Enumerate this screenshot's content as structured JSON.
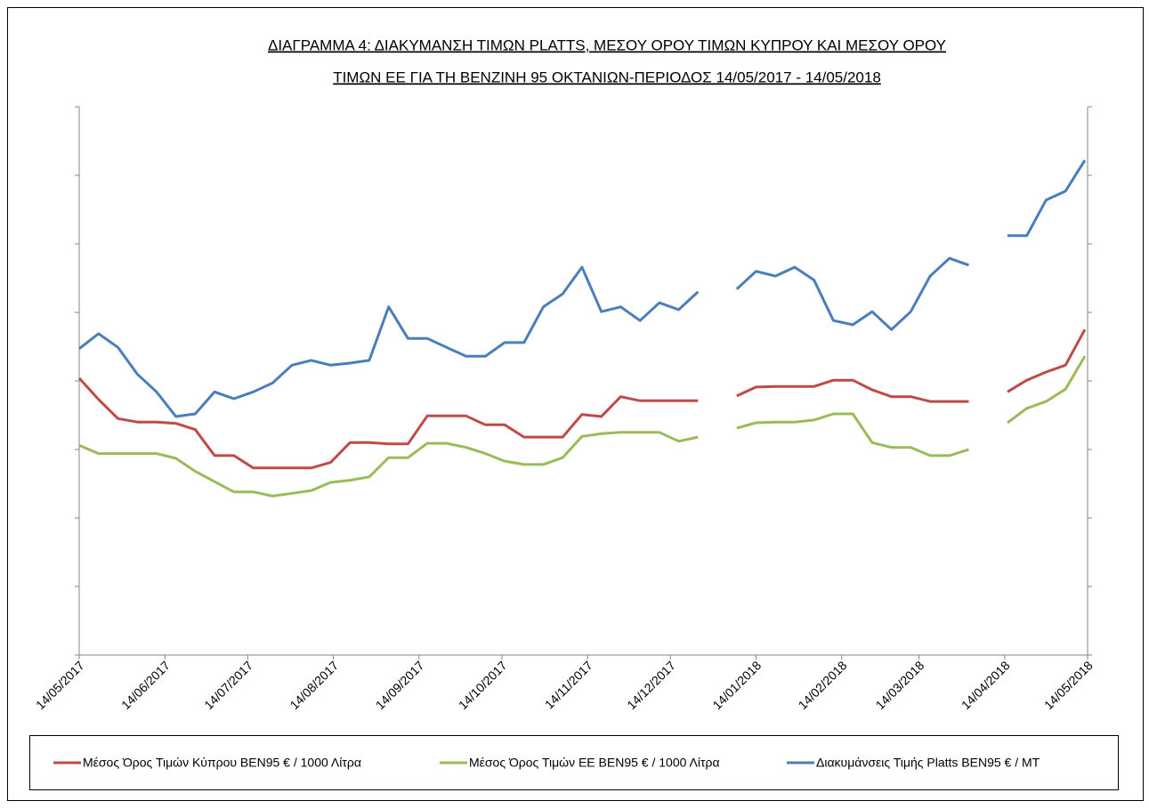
{
  "chart_data": {
    "type": "line",
    "title": [
      "ΔΙΑΓΡΑΜΜΑ 4: ΔΙΑΚΥΜΑΝΣΗ ΤΙΜΩΝ PLATTS, ΜΕΣΟΥ ΟΡΟΥ ΤΙΜΩΝ ΚΥΠΡΟΥ ΚΑΙ ΜΕΣΟΥ ΟΡΟΥ",
      "ΤΙΜΩΝ ΕΕ ΓΙΑ ΤΗ ΒΕΝΖΙΝΗ 95 ΟΚΤΑΝΙΩΝ-ΠΕΡΙΟΔΟΣ 14/05/2017 - 14/05/2018"
    ],
    "x": [
      "14/05/2017",
      "21/05/2017",
      "28/05/2017",
      "04/06/2017",
      "11/06/2017",
      "18/06/2017",
      "25/06/2017",
      "02/07/2017",
      "09/07/2017",
      "16/07/2017",
      "23/07/2017",
      "30/07/2017",
      "06/08/2017",
      "13/08/2017",
      "20/08/2017",
      "27/08/2017",
      "03/09/2017",
      "10/09/2017",
      "17/09/2017",
      "24/09/2017",
      "01/10/2017",
      "08/10/2017",
      "15/10/2017",
      "22/10/2017",
      "29/10/2017",
      "05/11/2017",
      "12/11/2017",
      "19/11/2017",
      "26/11/2017",
      "03/12/2017",
      "10/12/2017",
      "17/12/2017",
      "24/12/2017",
      "31/12/2017",
      "07/01/2018",
      "14/01/2018",
      "21/01/2018",
      "28/01/2018",
      "04/02/2018",
      "11/02/2018",
      "18/02/2018",
      "25/02/2018",
      "04/03/2018",
      "11/03/2018",
      "18/03/2018",
      "25/03/2018",
      "01/04/2018",
      "08/04/2018",
      "15/04/2018",
      "22/04/2018",
      "29/04/2018",
      "06/05/2018",
      "13/05/2018"
    ],
    "xlim": [
      "14/05/2017",
      "14/05/2018"
    ],
    "xticks": [
      "14/05/2017",
      "14/06/2017",
      "14/07/2017",
      "14/08/2017",
      "14/09/2017",
      "14/10/2017",
      "14/11/2017",
      "14/12/2017",
      "14/01/2018",
      "14/02/2018",
      "14/03/2018",
      "14/04/2018",
      "14/05/2018"
    ],
    "ylim": [
      0,
      800
    ],
    "yticks": [
      0,
      100,
      200,
      300,
      400,
      500,
      600,
      700,
      800
    ],
    "series": [
      {
        "name": "Μέσος Όρος Τιμών Κύπρου ΒΕΝ95 € / 1000  Λίτρα",
        "color": "#be4b48",
        "values": [
          404,
          373,
          345,
          340,
          340,
          338,
          329,
          291,
          291,
          273,
          273,
          273,
          273,
          281,
          310,
          310,
          308,
          308,
          349,
          349,
          349,
          336,
          336,
          318,
          318,
          318,
          351,
          348,
          377,
          371,
          371,
          371,
          371,
          null,
          378,
          391,
          392,
          392,
          392,
          401,
          401,
          387,
          377,
          377,
          370,
          370,
          370,
          null,
          384,
          401,
          413,
          423,
          475
        ]
      },
      {
        "name": "Μέσος Όρος Τιμών ΕΕ ΒΕΝ95 € / 1000  Λίτρα",
        "color": "#9bbb59",
        "values": [
          306,
          294,
          294,
          294,
          294,
          287,
          268,
          253,
          238,
          238,
          232,
          236,
          240,
          252,
          255,
          260,
          288,
          288,
          309,
          309,
          303,
          294,
          283,
          278,
          278,
          288,
          319,
          323,
          325,
          325,
          325,
          312,
          318,
          null,
          331,
          339,
          340,
          340,
          343,
          352,
          352,
          310,
          303,
          303,
          291,
          291,
          300,
          null,
          339,
          360,
          370,
          388,
          436
        ]
      },
      {
        "name": "Διακυμάνσεις Τιμής Platts ΒΕΝ95 € / ΜΤ",
        "color": "#4a7ebb",
        "values": [
          447,
          469,
          449,
          410,
          384,
          348,
          352,
          384,
          374,
          384,
          397,
          423,
          430,
          423,
          426,
          430,
          508,
          462,
          462,
          449,
          436,
          436,
          456,
          456,
          508,
          527,
          566,
          501,
          508,
          488,
          514,
          504,
          530,
          null,
          534,
          560,
          553,
          566,
          547,
          488,
          482,
          501,
          475,
          501,
          553,
          579,
          569,
          null,
          612,
          612,
          664,
          677,
          722
        ]
      }
    ]
  }
}
